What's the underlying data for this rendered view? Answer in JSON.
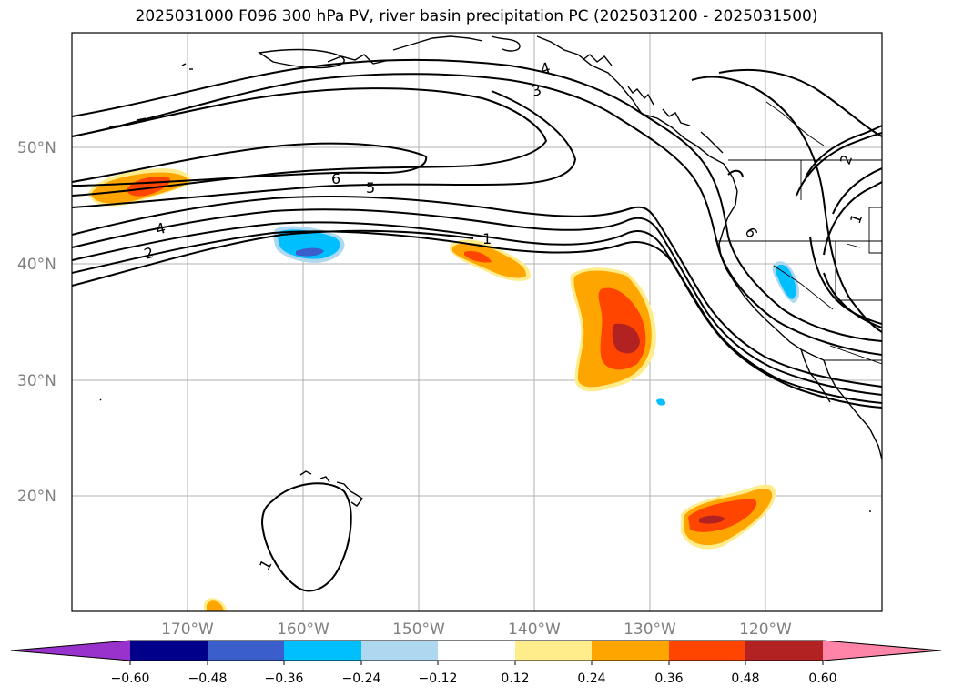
{
  "title": "2025031000 F096 300 hPa PV, river basin precipitation PC (2025031200 - 2025031500)",
  "map": {
    "lat_labels": [
      "50°N",
      "40°N",
      "30°N",
      "20°N"
    ],
    "lon_labels": [
      "170°W",
      "160°W",
      "150°W",
      "140°W",
      "130°W",
      "120°W"
    ],
    "contour_labels": [
      "4",
      "3",
      "6",
      "5",
      "4",
      "2",
      "1",
      "6",
      "2",
      "1",
      "1"
    ]
  },
  "colorbar": {
    "colors": [
      "#9932cc",
      "#00008b",
      "#3a5fcd",
      "#00bfff",
      "#add8f0",
      "#ffffff",
      "#ffec8b",
      "#ffa500",
      "#ff4500",
      "#b22222",
      "#ff85a8"
    ],
    "tick_labels": [
      "−0.60",
      "−0.48",
      "−0.36",
      "−0.24",
      "−0.12",
      "0.12",
      "0.24",
      "0.36",
      "0.48",
      "0.60"
    ]
  }
}
